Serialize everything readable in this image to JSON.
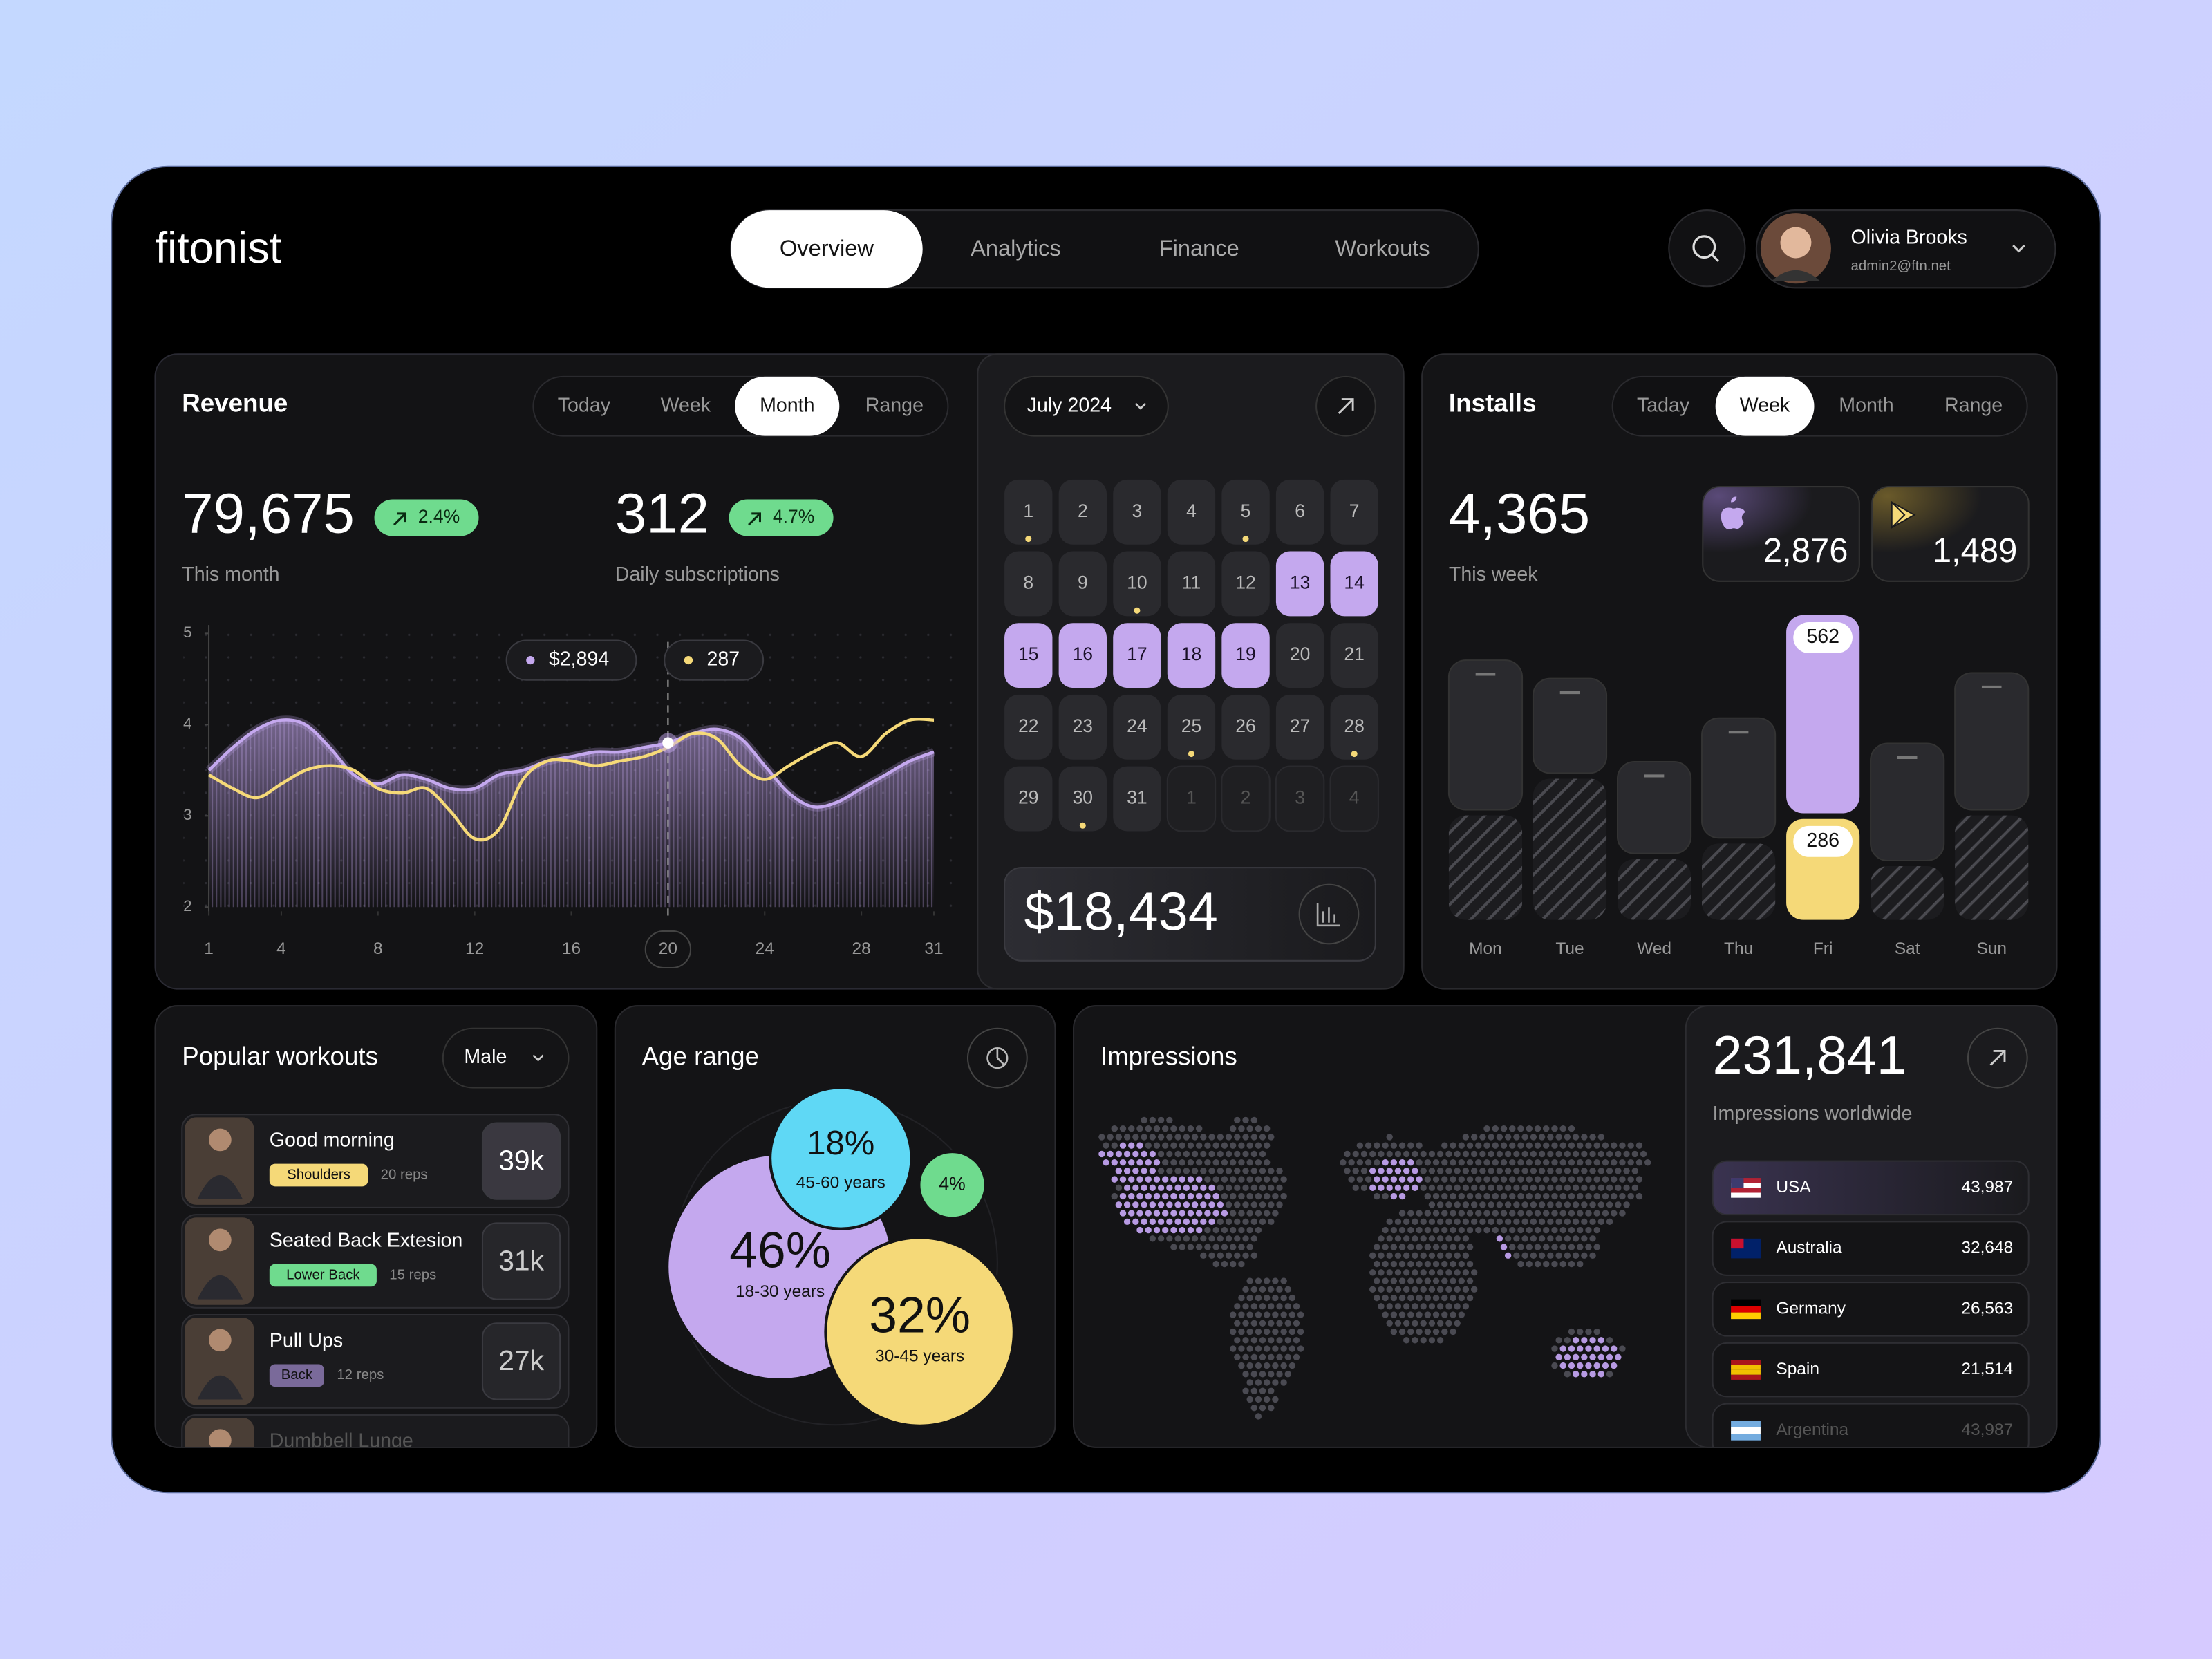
{
  "header": {
    "logo": "fitonist",
    "nav": [
      "Overview",
      "Analytics",
      "Finance",
      "Workouts"
    ],
    "active_nav": 0,
    "user": {
      "name": "Olivia Brooks",
      "email": "admin2@ftn.net"
    }
  },
  "revenue": {
    "title": "Revenue",
    "tabs": [
      "Today",
      "Week",
      "Month",
      "Range"
    ],
    "active_tab": 2,
    "stats": [
      {
        "value": "79,675",
        "change": "2.4%",
        "label": "This month"
      },
      {
        "value": "312",
        "change": "4.7%",
        "label": "Daily subscriptions"
      }
    ],
    "chart_data": {
      "type": "line",
      "x": [
        1,
        2,
        3,
        4,
        5,
        6,
        7,
        8,
        9,
        10,
        11,
        12,
        13,
        14,
        15,
        16,
        17,
        18,
        19,
        20,
        21,
        22,
        23,
        24,
        25,
        26,
        27,
        28,
        29,
        30,
        31
      ],
      "series": [
        {
          "color": "#c4a8ee",
          "values": [
            3.5,
            3.75,
            3.95,
            4.05,
            4.0,
            3.75,
            3.45,
            3.35,
            3.45,
            3.4,
            3.3,
            3.3,
            3.45,
            3.5,
            3.6,
            3.65,
            3.7,
            3.7,
            3.75,
            3.8,
            3.9,
            3.95,
            3.85,
            3.55,
            3.25,
            3.1,
            3.15,
            3.3,
            3.45,
            3.6,
            3.7
          ]
        },
        {
          "color": "#f5d978",
          "values": [
            3.45,
            3.3,
            3.2,
            3.35,
            3.5,
            3.55,
            3.5,
            3.3,
            3.25,
            3.3,
            3.05,
            2.75,
            2.85,
            3.4,
            3.6,
            3.6,
            3.55,
            3.6,
            3.65,
            3.75,
            3.9,
            3.85,
            3.55,
            3.4,
            3.55,
            3.7,
            3.8,
            3.65,
            3.9,
            4.05,
            4.05
          ]
        }
      ],
      "xlim": [
        1,
        31
      ],
      "xticks": [
        1,
        4,
        8,
        12,
        16,
        20,
        24,
        28,
        31
      ],
      "ylim": [
        2,
        5
      ],
      "yticks": [
        2,
        3,
        4,
        5
      ],
      "highlight_x": 20,
      "annotations": [
        "$2,894",
        "287"
      ]
    }
  },
  "calendar": {
    "month": "July 2024",
    "days": [
      1,
      2,
      3,
      4,
      5,
      6,
      7,
      8,
      9,
      10,
      11,
      12,
      13,
      14,
      15,
      16,
      17,
      18,
      19,
      20,
      21,
      22,
      23,
      24,
      25,
      26,
      27,
      28,
      29,
      30,
      31
    ],
    "dots": [
      1,
      5,
      10,
      25,
      28,
      30
    ],
    "selected_range": [
      13,
      19
    ],
    "next_days": [
      1,
      2,
      3,
      4
    ],
    "total": "$18,434"
  },
  "installs": {
    "title": "Installs",
    "tabs": [
      "Taday",
      "Week",
      "Month",
      "Range"
    ],
    "active_tab": 1,
    "total": "4,365",
    "total_label": "This week",
    "ios": "2,876",
    "android": "1,489",
    "chart_data": {
      "type": "bar",
      "categories": [
        "Mon",
        "Tue",
        "Wed",
        "Thu",
        "Fri",
        "Sat",
        "Sun"
      ],
      "series": [
        {
          "color": "#c4a8ee",
          "values": [
            424,
            268,
            260,
            340,
            562,
            332,
            388
          ]
        },
        {
          "color": "#f5d978",
          "values": [
            296,
            400,
            172,
            216,
            286,
            152,
            296
          ]
        }
      ],
      "highlight_index": 4
    }
  },
  "workouts": {
    "title": "Popular workouts",
    "filter": "Male",
    "items": [
      {
        "name": "Good morning",
        "tag": "Shoulders",
        "reps": "20 reps",
        "count": "39k"
      },
      {
        "name": "Seated Back Extesion",
        "tag": "Lower Back",
        "reps": "15 reps",
        "count": "31k"
      },
      {
        "name": "Pull Ups",
        "tag": "Back",
        "reps": "12 reps",
        "count": "27k"
      },
      {
        "name": "Dumbbell Lunge"
      }
    ]
  },
  "age_range": {
    "title": "Age range",
    "chart_data": {
      "type": "bubble",
      "categories": [
        "18-30 years",
        "30-45 years",
        "45-60 years",
        null
      ],
      "values": [
        46,
        32,
        18,
        4
      ],
      "value_labels": [
        "46%",
        "32%",
        "18%",
        "4%"
      ],
      "colors": [
        "#c4a8ee",
        "#f5d978",
        "#5fd8f5",
        "#6fdb8e"
      ]
    }
  },
  "impressions": {
    "title": "Impressions",
    "total": "231,841",
    "total_label": "Impressions worldwide",
    "countries": [
      {
        "name": "USA",
        "value": "43,987"
      },
      {
        "name": "Australia",
        "value": "32,648"
      },
      {
        "name": "Germany",
        "value": "26,563"
      },
      {
        "name": "Spain",
        "value": "21,514"
      },
      {
        "name": "Argentina",
        "value": "43,987"
      }
    ]
  }
}
